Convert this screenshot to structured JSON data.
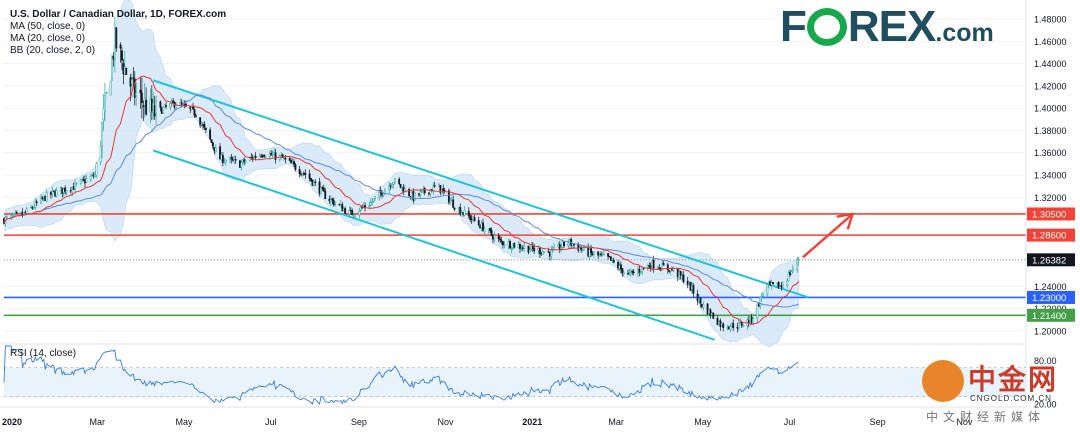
{
  "legend": {
    "title": "U.S. Dollar / Canadian Dollar, 1D, FOREX.com",
    "ma50": "MA (50, close, 0)",
    "ma20": "MA (20, close, 0)",
    "bb": "BB (20, close, 2, 0)"
  },
  "rsi_label": "RSI (14, close)",
  "brand": {
    "part1": "F",
    "part2": "REX",
    "part3": ".com"
  },
  "watermark": {
    "name": "中金网",
    "url": "CNGOLD.COM.CN",
    "sub": "中文财经新媒体"
  },
  "colors": {
    "up": "#26a69a",
    "down": "#131722",
    "channel": "#22c3d6",
    "ma20": "#e53935",
    "ma50": "#5b8ed6",
    "bb_fill": "#cfe4f7",
    "red_level": "#f44336",
    "blue_level": "#2962ff",
    "green_level": "#43a047",
    "arrow": "#f0403a"
  },
  "chart_data": [
    {
      "type": "candlestick",
      "title": "U.S. Dollar / Canadian Dollar, 1D, FOREX.com",
      "x_labels": [
        "2020",
        "Mar",
        "May",
        "Jul",
        "Sep",
        "Nov",
        "2021",
        "Mar",
        "May",
        "Jul",
        "Sep",
        "Nov"
      ],
      "x_range": [
        "2020-01-01",
        "2021-12-20"
      ],
      "ylim": [
        1.19,
        1.49
      ],
      "y_ticks": [
        "1.48000",
        "1.46000",
        "1.44000",
        "1.42000",
        "1.40000",
        "1.38000",
        "1.36000",
        "1.34000",
        "1.32000",
        "1.30500",
        "1.28600",
        "1.26382",
        "1.24000",
        "1.23000",
        "1.22000",
        "1.21400",
        "1.20000"
      ],
      "price_path": [
        [
          "2020-01-01",
          1.3
        ],
        [
          "2020-01-15",
          1.305
        ],
        [
          "2020-02-01",
          1.322
        ],
        [
          "2020-02-20",
          1.33
        ],
        [
          "2020-03-05",
          1.34
        ],
        [
          "2020-03-19",
          1.46
        ],
        [
          "2020-04-01",
          1.415
        ],
        [
          "2020-04-15",
          1.395
        ],
        [
          "2020-05-01",
          1.405
        ],
        [
          "2020-05-15",
          1.395
        ],
        [
          "2020-06-01",
          1.355
        ],
        [
          "2020-06-15",
          1.35
        ],
        [
          "2020-07-01",
          1.36
        ],
        [
          "2020-07-15",
          1.355
        ],
        [
          "2020-08-01",
          1.34
        ],
        [
          "2020-08-15",
          1.32
        ],
        [
          "2020-09-01",
          1.305
        ],
        [
          "2020-09-15",
          1.315
        ],
        [
          "2020-10-01",
          1.335
        ],
        [
          "2020-10-15",
          1.32
        ],
        [
          "2020-11-01",
          1.33
        ],
        [
          "2020-11-15",
          1.31
        ],
        [
          "2020-12-01",
          1.295
        ],
        [
          "2020-12-15",
          1.28
        ],
        [
          "2021-01-01",
          1.275
        ],
        [
          "2021-01-20",
          1.27
        ],
        [
          "2021-02-01",
          1.28
        ],
        [
          "2021-02-15",
          1.27
        ],
        [
          "2021-03-01",
          1.265
        ],
        [
          "2021-03-15",
          1.25
        ],
        [
          "2021-04-01",
          1.26
        ],
        [
          "2021-04-15",
          1.255
        ],
        [
          "2021-04-25",
          1.245
        ],
        [
          "2021-05-05",
          1.225
        ],
        [
          "2021-05-20",
          1.205
        ],
        [
          "2021-06-01",
          1.205
        ],
        [
          "2021-06-10",
          1.21
        ],
        [
          "2021-06-20",
          1.24
        ],
        [
          "2021-07-01",
          1.24
        ],
        [
          "2021-07-13",
          1.2638
        ]
      ],
      "bollinger_width": 0.012,
      "last_price": 1.26382,
      "horizontal_levels": [
        {
          "price": 1.305,
          "label": "1.30500",
          "color": "#f44336"
        },
        {
          "price": 1.286,
          "label": "1.28600",
          "color": "#f44336"
        },
        {
          "price": 1.23,
          "label": "1.23000",
          "color": "#2962ff"
        },
        {
          "price": 1.214,
          "label": "1.21400",
          "color": "#43a047"
        }
      ],
      "channel_upper": [
        [
          "2020-04-15",
          1.425
        ],
        [
          "2021-07-20",
          1.23
        ]
      ],
      "channel_lower": [
        [
          "2020-04-15",
          1.362
        ],
        [
          "2021-05-15",
          1.192
        ]
      ],
      "arrow": {
        "from": [
          "2021-07-16",
          1.266
        ],
        "to": [
          "2021-08-20",
          1.305
        ]
      }
    },
    {
      "type": "line",
      "title": "RSI (14, close)",
      "ylim": [
        20,
        100
      ],
      "y_ticks": [
        "80.00",
        "20.00"
      ],
      "bands": [
        70,
        30
      ]
    }
  ]
}
